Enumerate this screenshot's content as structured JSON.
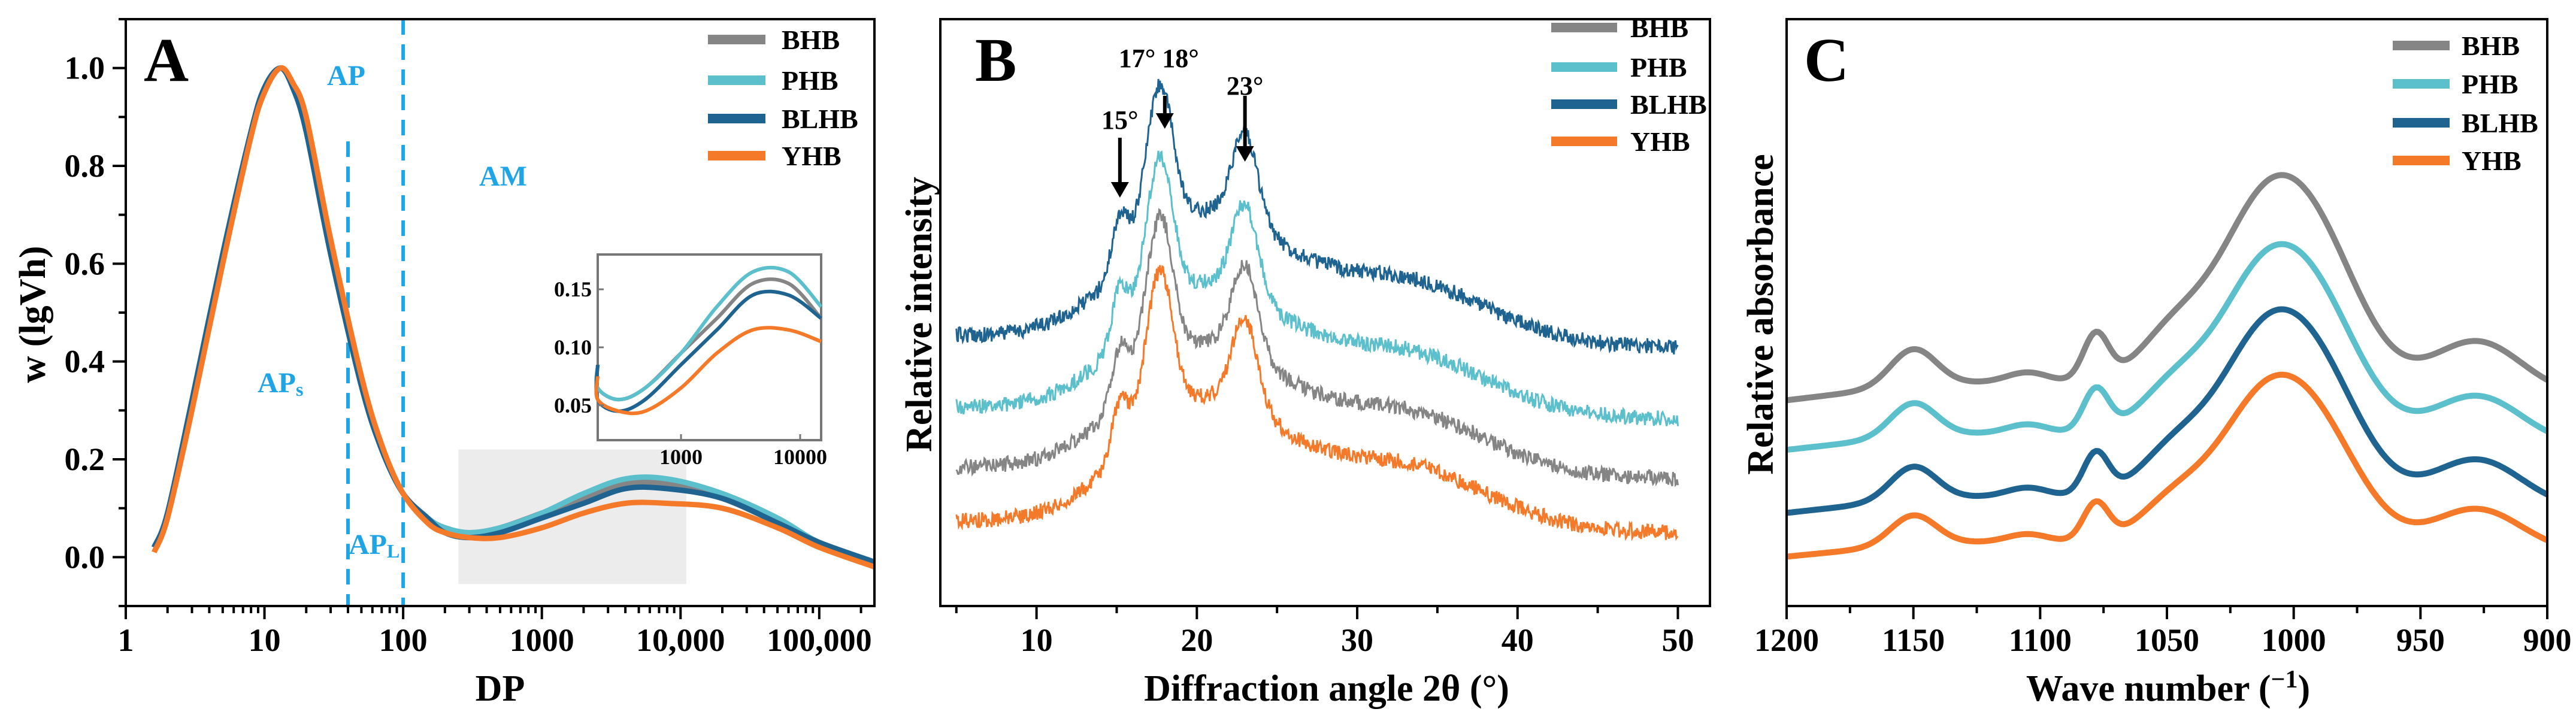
{
  "colors": {
    "BHB": "#858585",
    "PHB": "#5bbfcc",
    "BLHB": "#1f6390",
    "YHB": "#f47a2a",
    "annot": "#1fa4e6"
  },
  "chart_data": [
    {
      "id": "A",
      "type": "line",
      "panel_label": "A",
      "xlabel": "DP",
      "ylabel": "w (lgVh)",
      "xscale": "log",
      "xlim": [
        1,
        250000
      ],
      "ylim": [
        -0.1,
        1.1
      ],
      "xticks": [
        1,
        10,
        100,
        1000,
        10000,
        100000
      ],
      "xtick_labels": [
        "1",
        "10",
        "100",
        "1000",
        "10,000",
        "100,000"
      ],
      "yticks": [
        0.0,
        0.2,
        0.4,
        0.6,
        0.8,
        1.0
      ],
      "ytick_labels": [
        "0.0",
        "0.2",
        "0.4",
        "0.6",
        "0.8",
        "1.0"
      ],
      "x": [
        1.6,
        2,
        3,
        5,
        8,
        10,
        13,
        16,
        20,
        30,
        50,
        70,
        100,
        150,
        200,
        300,
        500,
        1000,
        2000,
        4000,
        8000,
        20000,
        50000,
        100000,
        250000
      ],
      "series": [
        {
          "name": "BHB",
          "values": [
            0.02,
            0.09,
            0.32,
            0.62,
            0.87,
            0.96,
            1.0,
            0.96,
            0.87,
            0.62,
            0.35,
            0.22,
            0.13,
            0.08,
            0.06,
            0.05,
            0.06,
            0.09,
            0.12,
            0.15,
            0.15,
            0.12,
            0.07,
            0.03,
            -0.01
          ]
        },
        {
          "name": "PHB",
          "values": [
            0.02,
            0.09,
            0.32,
            0.62,
            0.87,
            0.96,
            1.0,
            0.96,
            0.87,
            0.62,
            0.35,
            0.22,
            0.13,
            0.08,
            0.06,
            0.05,
            0.06,
            0.09,
            0.13,
            0.16,
            0.16,
            0.13,
            0.08,
            0.03,
            -0.01
          ]
        },
        {
          "name": "BLHB",
          "values": [
            0.02,
            0.09,
            0.32,
            0.62,
            0.87,
            0.96,
            1.0,
            0.96,
            0.87,
            0.62,
            0.35,
            0.22,
            0.13,
            0.08,
            0.05,
            0.04,
            0.05,
            0.08,
            0.11,
            0.14,
            0.14,
            0.12,
            0.07,
            0.03,
            -0.01
          ]
        },
        {
          "name": "YHB",
          "values": [
            0.01,
            0.08,
            0.3,
            0.6,
            0.86,
            0.95,
            1.0,
            0.97,
            0.9,
            0.65,
            0.37,
            0.23,
            0.13,
            0.07,
            0.05,
            0.04,
            0.04,
            0.06,
            0.09,
            0.11,
            0.11,
            0.1,
            0.06,
            0.02,
            -0.02
          ]
        }
      ],
      "annotations": {
        "AP": "AP",
        "AM": "AM",
        "APs": "APs",
        "APL": "APL",
        "AP_sub_s": "s",
        "AP_sub_L": "L"
      },
      "boundaries": [
        40,
        100
      ],
      "highlight_range": [
        250,
        11000
      ],
      "inset": {
        "xlim": [
          200,
          15000
        ],
        "ylim": [
          0.02,
          0.18
        ],
        "xticks": [
          1000,
          10000
        ],
        "xtick_labels": [
          "1000",
          "10000"
        ],
        "yticks": [
          0.05,
          0.1,
          0.15
        ],
        "ytick_labels": [
          "0.05",
          "0.10",
          "0.15"
        ]
      }
    },
    {
      "id": "B",
      "type": "line",
      "panel_label": "B",
      "xlabel": "Diffraction angle 2θ (°)",
      "ylabel": "Relative intensity",
      "xlim": [
        4,
        52
      ],
      "xticks": [
        10,
        20,
        30,
        40,
        50
      ],
      "xtick_labels": [
        "10",
        "20",
        "30",
        "40",
        "50"
      ],
      "series": [
        {
          "name": "BHB",
          "offset": 0.0
        },
        {
          "name": "PHB",
          "offset": 0.0
        },
        {
          "name": "BLHB",
          "offset": 0.0
        },
        {
          "name": "YHB",
          "offset": 0.0
        }
      ],
      "peaks": [
        {
          "x": 15,
          "label": "15°"
        },
        {
          "x": 18,
          "label": "17° 18°"
        },
        {
          "x": 23,
          "label": "23°"
        }
      ]
    },
    {
      "id": "C",
      "type": "line",
      "panel_label": "C",
      "xlabel": "Wave number (⁻¹)",
      "ylabel": "Relative absorbance",
      "xlim": [
        1200,
        900
      ],
      "xticks": [
        1200,
        1150,
        1100,
        1050,
        1000,
        950,
        900
      ],
      "xtick_labels": [
        "1200",
        "1150",
        "1100",
        "1050",
        "1000",
        "950",
        "900"
      ],
      "series": [
        {
          "name": "BHB"
        },
        {
          "name": "PHB"
        },
        {
          "name": "BLHB"
        },
        {
          "name": "YHB"
        }
      ]
    }
  ],
  "legend": [
    "BHB",
    "PHB",
    "BLHB",
    "YHB"
  ]
}
